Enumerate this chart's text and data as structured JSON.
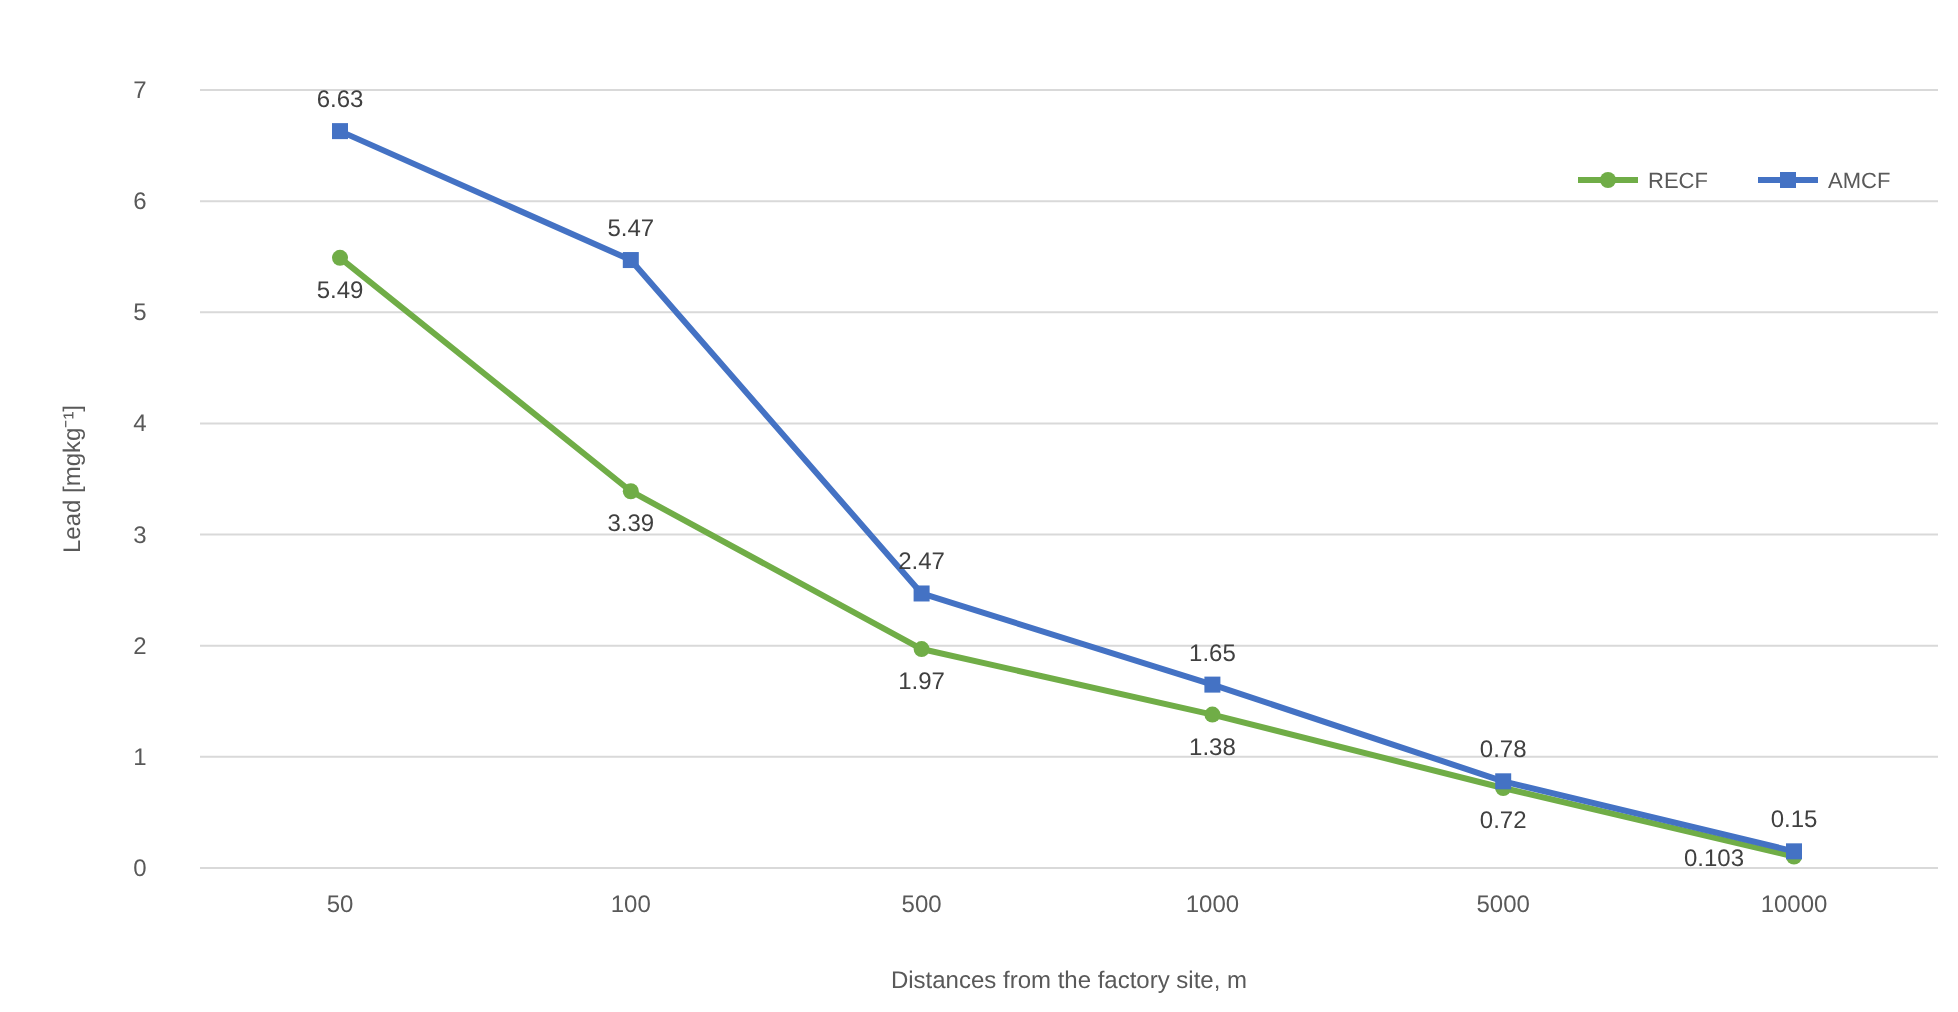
{
  "chart_data": {
    "type": "line",
    "xlabel": "Distances from the factory site, m",
    "ylabel": "Lead [mgkg⁻¹]",
    "categories": [
      "50",
      "100",
      "500",
      "1000",
      "5000",
      "10000"
    ],
    "series": [
      {
        "name": "RECF",
        "color": "#70ad47",
        "marker": "circle",
        "values": [
          5.49,
          3.39,
          1.97,
          1.38,
          0.72,
          0.103
        ]
      },
      {
        "name": "AMCF",
        "color": "#4472c4",
        "marker": "square",
        "values": [
          6.63,
          5.47,
          2.47,
          1.65,
          0.78,
          0.15
        ]
      }
    ],
    "ylim": [
      0,
      7
    ],
    "yticks": [
      0,
      1,
      2,
      3,
      4,
      5,
      6,
      7
    ],
    "grid": "y",
    "legend": "top right",
    "data_labels": true
  }
}
